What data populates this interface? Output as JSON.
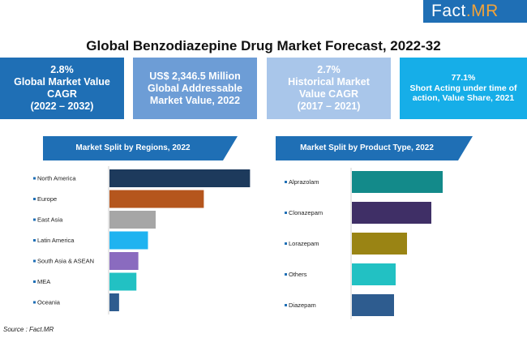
{
  "logo": {
    "text_a": "Fact",
    "text_b": ".MR"
  },
  "title": "Global Benzodiazepine Drug Market Forecast, 2022-32",
  "kpis": [
    {
      "lines": [
        "2.8%",
        "Global Market Value",
        "CAGR",
        "(2022 – 2032)"
      ]
    },
    {
      "lines": [
        "US$ 2,346.5 Million",
        "Global Addressable",
        "Market Value, 2022"
      ]
    },
    {
      "lines": [
        "2.7%",
        "Historical Market",
        "Value CAGR",
        "(2017 – 2021)"
      ]
    },
    {
      "lines": [
        "77.1%",
        "Short Acting under time of",
        "action, Value Share, 2021"
      ]
    }
  ],
  "source": "Source : Fact.MR",
  "chart_data": [
    {
      "type": "bar",
      "orientation": "horizontal",
      "title": "Market Split by Regions, 2022",
      "categories": [
        "North America",
        "Europe",
        "East Asia",
        "Latin America",
        "South Asia & ASEAN",
        "MEA",
        "Oceania"
      ],
      "values": [
        36.5,
        24.5,
        12,
        10,
        7.5,
        7,
        2.5
      ],
      "colors": [
        "#1d3a5c",
        "#b5561d",
        "#a6a6a6",
        "#1fb3f0",
        "#8a6bbf",
        "#22c1c3",
        "#2e5c8f"
      ],
      "xlim": [
        0,
        40
      ],
      "value_axis": "unlabeled (relative share)"
    },
    {
      "type": "bar",
      "orientation": "horizontal",
      "title": "Market Split by Product Type, 2022",
      "categories": [
        "Alprazolam",
        "Clonazepam",
        "Lorazepam",
        "Others",
        "Diazepam"
      ],
      "values": [
        28,
        24.5,
        17,
        13.5,
        13
      ],
      "colors": [
        "#138a8a",
        "#3f2f66",
        "#9a8414",
        "#22c1c3",
        "#2e5c8f"
      ],
      "xlim": [
        0,
        40
      ],
      "value_axis": "unlabeled (relative share)"
    }
  ]
}
